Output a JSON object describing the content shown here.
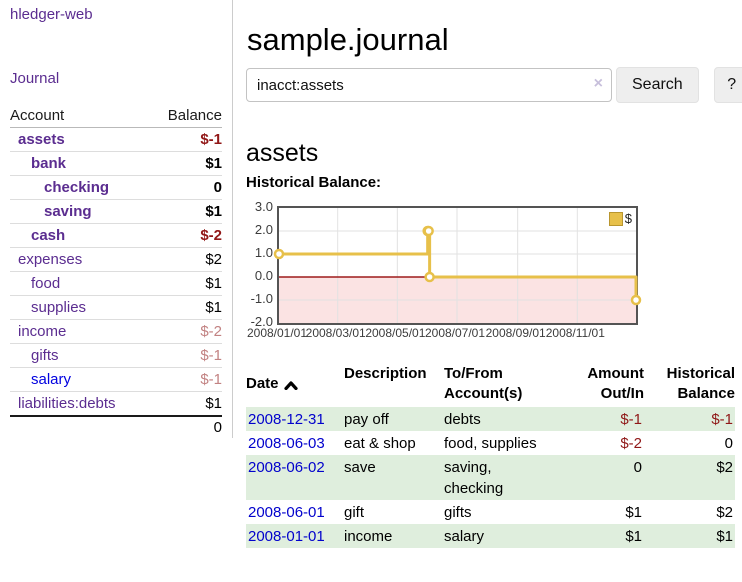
{
  "app": {
    "brand": "hledger-web",
    "nav_journal": "Journal"
  },
  "sidebar": {
    "header": {
      "account": "Account",
      "balance": "Balance"
    },
    "accounts": [
      {
        "name": "assets",
        "balance": "$-1",
        "indent": 1,
        "matched": true,
        "amount_tone": "neg"
      },
      {
        "name": "bank",
        "balance": "$1",
        "indent": 2,
        "matched": true,
        "amount_tone": "pos"
      },
      {
        "name": "checking",
        "balance": "0",
        "indent": 3,
        "matched": true,
        "amount_tone": "pos"
      },
      {
        "name": "saving",
        "balance": "$1",
        "indent": 3,
        "matched": true,
        "amount_tone": "pos"
      },
      {
        "name": "cash",
        "balance": "$-2",
        "indent": 2,
        "matched": true,
        "amount_tone": "neg"
      },
      {
        "name": "expenses",
        "balance": "$2",
        "indent": 1,
        "matched": false,
        "amount_tone": "pos"
      },
      {
        "name": "food",
        "balance": "$1",
        "indent": 2,
        "matched": false,
        "amount_tone": "pos"
      },
      {
        "name": "supplies",
        "balance": "$1",
        "indent": 2,
        "matched": false,
        "amount_tone": "pos"
      },
      {
        "name": "income",
        "balance": "$-2",
        "indent": 1,
        "matched": false,
        "amount_tone": "neg-dim"
      },
      {
        "name": "gifts",
        "balance": "$-1",
        "indent": 2,
        "matched": false,
        "amount_tone": "neg-dim"
      },
      {
        "name": "salary",
        "balance": "$-1",
        "indent": 2,
        "matched": false,
        "amount_tone": "neg-dim",
        "unvisited": true
      },
      {
        "name": "liabilities:debts",
        "balance": "$1",
        "indent": 1,
        "matched": false,
        "amount_tone": "pos"
      }
    ],
    "total": "0"
  },
  "main": {
    "title": "sample.journal",
    "search": {
      "value": "inacct:assets",
      "clear_icon": "×",
      "button": "Search",
      "help": "?"
    },
    "account_heading": "assets",
    "chart_label": "Historical Balance:"
  },
  "chart_data": {
    "type": "line",
    "step": true,
    "title": "Historical Balance",
    "series": [
      {
        "name": "$",
        "color": "#e7c04a",
        "points": [
          [
            "2008-01-01",
            1.0
          ],
          [
            "2008-06-01",
            2.0
          ],
          [
            "2008-06-02",
            2.0
          ],
          [
            "2008-06-03",
            0.0
          ],
          [
            "2008-12-31",
            -1.0
          ]
        ]
      }
    ],
    "ylim": [
      -2.0,
      3.0
    ],
    "yticks": [
      3.0,
      2.0,
      1.0,
      0.0,
      -1.0,
      -2.0
    ],
    "xtick_labels": [
      "2008/01/01",
      "2008/03/01",
      "2008/05/01",
      "2008/07/01",
      "2008/09/01",
      "2008/11/01"
    ],
    "x_range": [
      "2008-01-01",
      "2008-12-31"
    ],
    "legend": {
      "position": "top-right",
      "entries": [
        {
          "label": "$",
          "color": "#e7c04a"
        }
      ]
    },
    "grid": true,
    "zero_line_color": "#9e1b1b",
    "negative_region_fill": "#fbe3e3",
    "grid_color": "#e2e2e2"
  },
  "register": {
    "headers": {
      "date": "Date",
      "description": "Description",
      "accounts": "To/From Account(s)",
      "amount": "Amount Out/In",
      "balance": "Historical Balance"
    },
    "rows": [
      {
        "date": "2008-12-31",
        "description": "pay off",
        "accounts": "debts",
        "amount": "$-1",
        "amount_tone": "neg",
        "balance": "$-1",
        "balance_tone": "neg"
      },
      {
        "date": "2008-06-03",
        "description": "eat & shop",
        "accounts": "food, supplies",
        "amount": "$-2",
        "amount_tone": "neg",
        "balance": "0",
        "balance_tone": "pos"
      },
      {
        "date": "2008-06-02",
        "description": "save",
        "accounts": "saving, checking",
        "amount": "0",
        "amount_tone": "pos",
        "balance": "$2",
        "balance_tone": "pos"
      },
      {
        "date": "2008-06-01",
        "description": "gift",
        "accounts": "gifts",
        "amount": "$1",
        "amount_tone": "pos",
        "balance": "$2",
        "balance_tone": "pos"
      },
      {
        "date": "2008-01-01",
        "description": "income",
        "accounts": "salary",
        "amount": "$1",
        "amount_tone": "pos",
        "balance": "$1",
        "balance_tone": "pos"
      }
    ]
  }
}
